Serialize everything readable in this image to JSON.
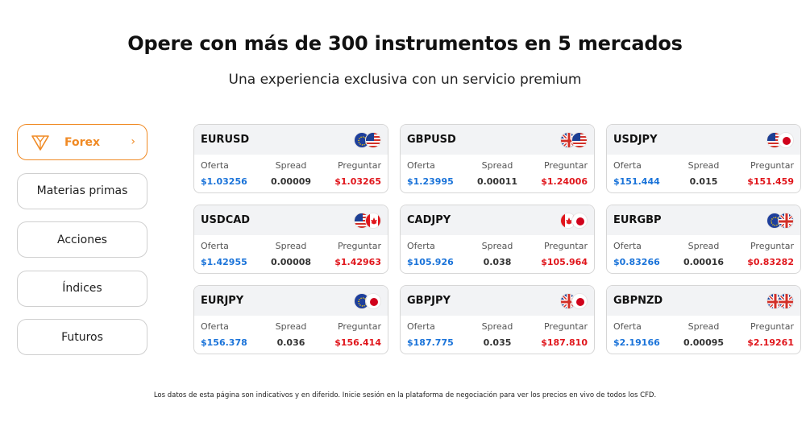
{
  "header": {
    "title": "Opere con más de 300 instrumentos en 5 mercados",
    "subtitle": "Una experiencia exclusiva con un servicio premium"
  },
  "tabs": [
    {
      "label": "Forex",
      "icon": "forex-triangle-icon",
      "chevron": "›",
      "active": true
    },
    {
      "label": "Materias primas",
      "active": false
    },
    {
      "label": "Acciones",
      "active": false
    },
    {
      "label": "Índices",
      "active": false
    },
    {
      "label": "Futuros",
      "active": false
    }
  ],
  "columns": {
    "bid": "Oferta",
    "spread": "Spread",
    "ask": "Preguntar"
  },
  "instruments": [
    {
      "symbol": "EURUSD",
      "flags": [
        "eu-flag-icon",
        "us-flag-icon"
      ],
      "bid": "$1.03256",
      "spread": "0.00009",
      "ask": "$1.03265"
    },
    {
      "symbol": "GBPUSD",
      "flags": [
        "gb-flag-icon",
        "us-flag-icon"
      ],
      "bid": "$1.23995",
      "spread": "0.00011",
      "ask": "$1.24006"
    },
    {
      "symbol": "USDJPY",
      "flags": [
        "us-flag-icon",
        "jp-flag-icon"
      ],
      "bid": "$151.444",
      "spread": "0.015",
      "ask": "$151.459"
    },
    {
      "symbol": "USDCAD",
      "flags": [
        "us-flag-icon",
        "ca-flag-icon"
      ],
      "bid": "$1.42955",
      "spread": "0.00008",
      "ask": "$1.42963"
    },
    {
      "symbol": "CADJPY",
      "flags": [
        "ca-flag-icon",
        "jp-flag-icon"
      ],
      "bid": "$105.926",
      "spread": "0.038",
      "ask": "$105.964"
    },
    {
      "symbol": "EURGBP",
      "flags": [
        "eu-flag-icon",
        "gb-flag-icon"
      ],
      "bid": "$0.83266",
      "spread": "0.00016",
      "ask": "$0.83282"
    },
    {
      "symbol": "EURJPY",
      "flags": [
        "eu-flag-icon",
        "jp-flag-icon"
      ],
      "bid": "$156.378",
      "spread": "0.036",
      "ask": "$156.414"
    },
    {
      "symbol": "GBPJPY",
      "flags": [
        "gb-flag-icon",
        "jp-flag-icon"
      ],
      "bid": "$187.775",
      "spread": "0.035",
      "ask": "$187.810"
    },
    {
      "symbol": "GBPNZD",
      "flags": [
        "gb-flag-icon",
        "nz-flag-icon"
      ],
      "bid": "$2.19166",
      "spread": "0.00095",
      "ask": "$2.19261"
    }
  ],
  "colors": {
    "accent": "#f08a24",
    "bid": "#1a73d9",
    "ask": "#e0161c"
  },
  "disclaimer": "Los datos de esta página son indicativos y en diferido. Inicie sesión en la plataforma de negociación para ver los precios en vivo de todos los CFD."
}
